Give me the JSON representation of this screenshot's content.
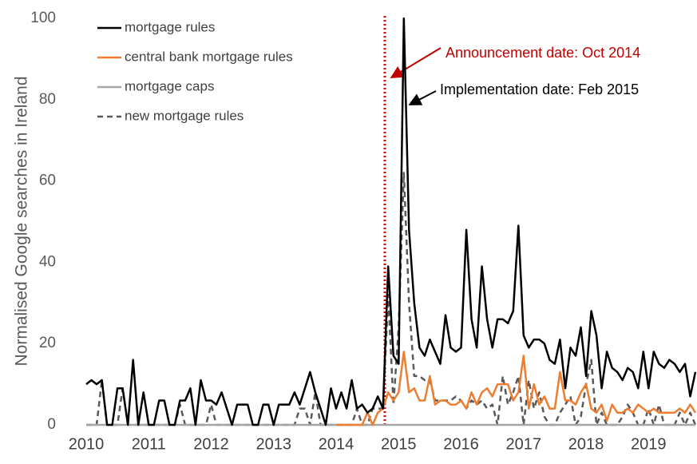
{
  "chart_data": {
    "type": "line",
    "y_label": "Normalised Google searches in Ireland",
    "annotations": [
      "Announcement date: Oct 2014",
      "Implementation date: Feb 2015"
    ],
    "categories": [
      "2010",
      null,
      null,
      null,
      null,
      null,
      null,
      null,
      null,
      null,
      null,
      null,
      "2011",
      null,
      null,
      null,
      null,
      null,
      null,
      null,
      null,
      null,
      null,
      null,
      "2012",
      null,
      null,
      null,
      null,
      null,
      null,
      null,
      null,
      null,
      null,
      null,
      "2013",
      null,
      null,
      null,
      null,
      null,
      null,
      null,
      null,
      null,
      null,
      null,
      "2014",
      null,
      null,
      null,
      null,
      null,
      null,
      null,
      null,
      null,
      null,
      null,
      "2015",
      null,
      null,
      null,
      null,
      null,
      null,
      null,
      null,
      null,
      null,
      null,
      "2016",
      null,
      null,
      null,
      null,
      null,
      null,
      null,
      null,
      null,
      null,
      null,
      "2017",
      null,
      null,
      null,
      null,
      null,
      null,
      null,
      null,
      null,
      null,
      null,
      "2018",
      null,
      null,
      null,
      null,
      null,
      null,
      null,
      null,
      null,
      null,
      null,
      "2019",
      null,
      null,
      null,
      null,
      null,
      null,
      null,
      null,
      null
    ],
    "series": [
      {
        "name": "mortgage rules",
        "color": "#000000",
        "dash": false,
        "values": [
          10,
          11,
          10,
          11,
          0,
          0,
          9,
          9,
          0,
          16,
          0,
          8,
          0,
          0,
          6,
          6,
          0,
          0,
          6,
          6,
          9,
          0,
          11,
          6,
          6,
          5,
          8,
          4,
          0,
          5,
          5,
          5,
          0,
          0,
          5,
          5,
          0,
          5,
          5,
          5,
          8,
          5,
          9,
          13,
          8,
          4,
          0,
          9,
          4,
          8,
          4,
          11,
          4,
          5,
          3,
          4,
          7,
          4,
          39,
          17,
          15,
          100,
          48,
          30,
          19,
          17,
          21,
          18,
          15,
          27,
          19,
          18,
          19,
          48,
          26,
          19,
          39,
          26,
          19,
          26,
          26,
          25,
          28,
          49,
          22,
          19,
          21,
          21,
          20,
          16,
          15,
          21,
          9,
          19,
          17,
          24,
          12,
          28,
          22,
          9,
          18,
          14,
          13,
          11,
          14,
          13,
          9,
          18,
          9,
          18,
          15,
          14,
          16,
          15,
          13,
          15,
          7,
          13
        ]
      },
      {
        "name": "central bank mortgage rules",
        "color": "#ed7d31",
        "dash": false,
        "values": [
          null,
          null,
          null,
          null,
          null,
          null,
          null,
          null,
          null,
          null,
          null,
          null,
          null,
          null,
          null,
          null,
          null,
          null,
          null,
          null,
          null,
          null,
          null,
          null,
          null,
          null,
          null,
          null,
          null,
          null,
          null,
          null,
          null,
          null,
          null,
          null,
          null,
          null,
          null,
          null,
          null,
          null,
          null,
          null,
          null,
          null,
          null,
          null,
          0,
          0,
          0,
          0,
          0,
          0,
          3,
          0,
          3,
          4,
          8,
          6,
          8,
          18,
          8,
          9,
          6,
          6,
          12,
          5,
          6,
          6,
          5,
          5,
          6,
          4,
          8,
          5,
          8,
          9,
          7,
          10,
          10,
          10,
          6,
          8,
          17,
          4,
          10,
          5,
          7,
          4,
          4,
          13,
          6,
          6,
          5,
          8,
          10,
          4,
          3,
          5,
          1,
          5,
          3,
          3,
          4,
          3,
          5,
          4,
          3,
          4,
          3,
          3,
          3,
          3,
          4,
          3,
          5,
          3
        ]
      },
      {
        "name": "mortgage caps",
        "color": "#a5a5a5",
        "dash": false,
        "values": [
          0,
          0,
          0,
          0,
          0,
          0,
          0,
          0,
          0,
          0,
          0,
          0,
          0,
          0,
          0,
          0,
          0,
          0,
          0,
          0,
          0,
          0,
          0,
          0,
          0,
          0,
          0,
          0,
          0,
          0,
          0,
          0,
          0,
          0,
          0,
          0,
          0,
          0,
          0,
          0,
          0,
          0,
          0,
          0,
          0,
          0,
          0,
          0,
          0,
          0,
          0,
          0,
          0,
          0,
          0,
          0,
          0,
          0,
          0,
          0,
          0,
          0,
          0,
          0,
          0,
          0,
          0,
          0,
          0,
          0,
          0,
          0,
          0,
          0,
          0,
          0,
          0,
          0,
          0,
          0,
          0,
          0,
          0,
          0,
          0,
          0,
          0,
          0,
          0,
          0,
          0,
          0,
          0,
          0,
          0,
          0,
          0,
          0,
          0,
          0,
          0,
          0,
          0,
          0,
          0,
          0,
          0,
          0,
          0,
          0,
          0,
          0,
          0,
          0,
          0,
          0,
          0,
          0
        ]
      },
      {
        "name": "new mortgage rules",
        "color": "#595959",
        "dash": true,
        "values": [
          0,
          0,
          0,
          11,
          0,
          0,
          0,
          9,
          0,
          0,
          0,
          0,
          0,
          0,
          0,
          0,
          0,
          0,
          5,
          0,
          0,
          0,
          0,
          0,
          5,
          0,
          0,
          0,
          0,
          0,
          0,
          0,
          0,
          0,
          0,
          0,
          0,
          0,
          0,
          0,
          0,
          4,
          4,
          0,
          8,
          0,
          0,
          0,
          0,
          0,
          0,
          0,
          4,
          0,
          0,
          4,
          4,
          4,
          32,
          5,
          24,
          62,
          30,
          12,
          12,
          11,
          11,
          6,
          6,
          6,
          6,
          7,
          6,
          4,
          6,
          5,
          6,
          4,
          5,
          0,
          12,
          5,
          8,
          12,
          0,
          11,
          4,
          8,
          2,
          0,
          0,
          3,
          5,
          7,
          0,
          2,
          10,
          16,
          0,
          3,
          0,
          0,
          0,
          2,
          5,
          3,
          0,
          0,
          4,
          0,
          5,
          0,
          0,
          0,
          3,
          0,
          3,
          0
        ]
      }
    ],
    "ylim": [
      0,
      100
    ],
    "yticks": [
      0,
      20,
      40,
      60,
      80,
      100
    ],
    "grid": false
  }
}
